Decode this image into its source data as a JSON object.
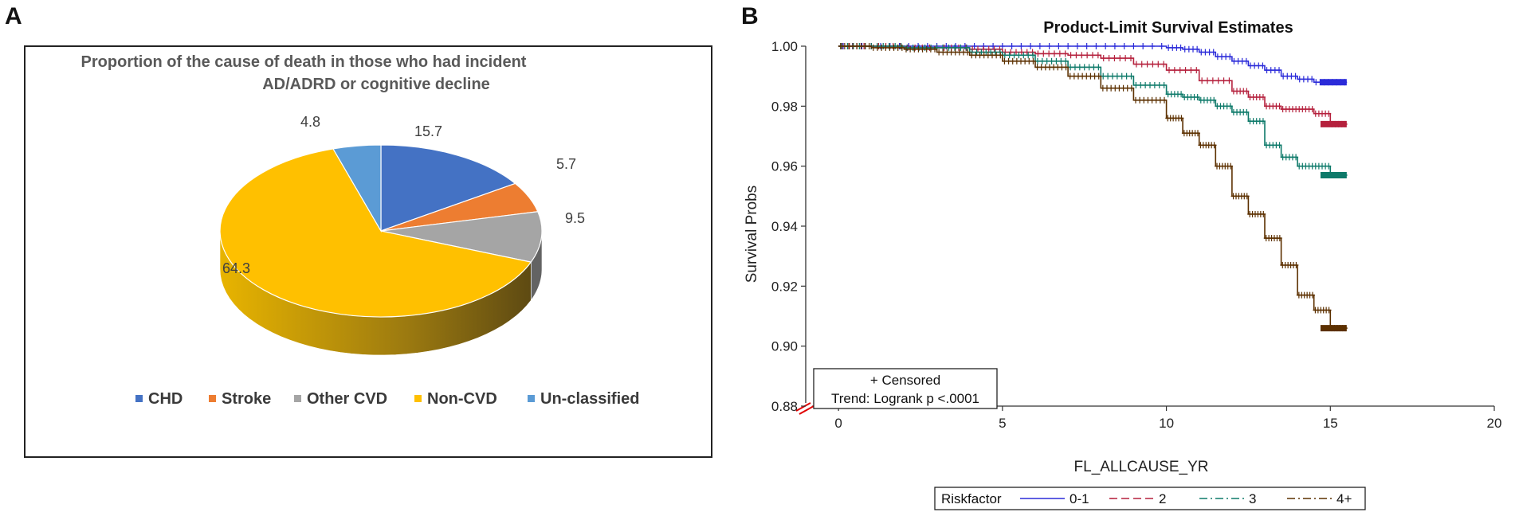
{
  "panel_a": {
    "letter": "A",
    "title_line1": "Proportion of the cause of death in those who had incident",
    "title_line2": "AD/ADRD or cognitive decline"
  },
  "panel_b": {
    "letter": "B"
  },
  "colors": {
    "chd": "#4472C4",
    "stroke": "#ED7D31",
    "other_cvd": "#A5A5A5",
    "non_cvd": "#FFC000",
    "unclassified": "#5B9BD5",
    "rf01": "#2B2BD9",
    "rf2": "#B5213D",
    "rf3": "#0E7A6A",
    "rf4": "#5C3000"
  },
  "chart_data": [
    {
      "type": "pie",
      "title": "Proportion of the cause of death in those who had incident AD/ADRD or cognitive decline",
      "style": "3d",
      "categories": [
        "CHD",
        "Stroke",
        "Other CVD",
        "Non-CVD",
        "Un-classified"
      ],
      "values": [
        15.7,
        5.7,
        9.5,
        64.3,
        4.8
      ],
      "labels": [
        "15.7",
        "5.7",
        "9.5",
        "64.3",
        "4.8"
      ],
      "legend": [
        "CHD",
        "Stroke",
        "Other CVD",
        "Non-CVD",
        "Un-classified"
      ],
      "legend_position": "bottom"
    },
    {
      "type": "line",
      "step": true,
      "title": "Product-Limit Survival Estimates",
      "xlabel": "FL_ALLCAUSE_YR",
      "ylabel": "Survival Probs",
      "xlim": [
        -1,
        20
      ],
      "ylim": [
        0.88,
        1.0
      ],
      "xticks": [
        0,
        5,
        10,
        15,
        20
      ],
      "yticks": [
        0.88,
        0.9,
        0.92,
        0.94,
        0.96,
        0.98,
        1.0
      ],
      "ytick_labels": [
        "0.88",
        "0.90",
        "0.92",
        "0.94",
        "0.96",
        "0.98",
        "1.00"
      ],
      "annotation": [
        "+ Censored",
        "Trend: Logrank p <.0001"
      ],
      "legend_title": "Riskfactor",
      "legend_position": "bottom",
      "series": [
        {
          "name": "0-1",
          "x": [
            0,
            2,
            4,
            6,
            8,
            10,
            10.5,
            11,
            11.5,
            12,
            12.5,
            13,
            13.5,
            14,
            14.5,
            15,
            15.5
          ],
          "y": [
            1.0,
            1.0,
            1.0,
            1.0,
            1.0,
            0.9995,
            0.999,
            0.998,
            0.9965,
            0.995,
            0.9935,
            0.992,
            0.99,
            0.989,
            0.988,
            0.988,
            0.988
          ]
        },
        {
          "name": "2",
          "x": [
            0,
            2,
            4,
            5,
            6,
            7,
            8,
            9,
            10,
            11,
            12,
            12.5,
            13,
            13.5,
            14,
            14.5,
            15,
            15.5
          ],
          "y": [
            1.0,
            0.9995,
            0.999,
            0.998,
            0.9975,
            0.997,
            0.996,
            0.994,
            0.992,
            0.9885,
            0.985,
            0.983,
            0.98,
            0.979,
            0.979,
            0.9775,
            0.974,
            0.974
          ]
        },
        {
          "name": "3",
          "x": [
            0,
            2,
            4,
            5,
            6,
            7,
            8,
            9,
            10,
            10.5,
            11,
            11.5,
            12,
            12.5,
            13,
            13.5,
            14,
            14.5,
            15,
            15.5
          ],
          "y": [
            1.0,
            0.9995,
            0.998,
            0.997,
            0.995,
            0.993,
            0.99,
            0.987,
            0.984,
            0.983,
            0.982,
            0.98,
            0.978,
            0.975,
            0.967,
            0.963,
            0.96,
            0.96,
            0.957,
            0.957
          ]
        },
        {
          "name": "4+",
          "x": [
            0,
            1,
            2,
            3,
            4,
            5,
            6,
            7,
            8,
            9,
            10,
            10.5,
            11,
            11.5,
            12,
            12.5,
            13,
            13.5,
            14,
            14.5,
            15,
            15.5
          ],
          "y": [
            1.0,
            0.9995,
            0.999,
            0.998,
            0.997,
            0.995,
            0.993,
            0.99,
            0.986,
            0.982,
            0.976,
            0.971,
            0.967,
            0.96,
            0.95,
            0.944,
            0.936,
            0.927,
            0.917,
            0.912,
            0.906,
            0.906
          ]
        }
      ]
    }
  ]
}
